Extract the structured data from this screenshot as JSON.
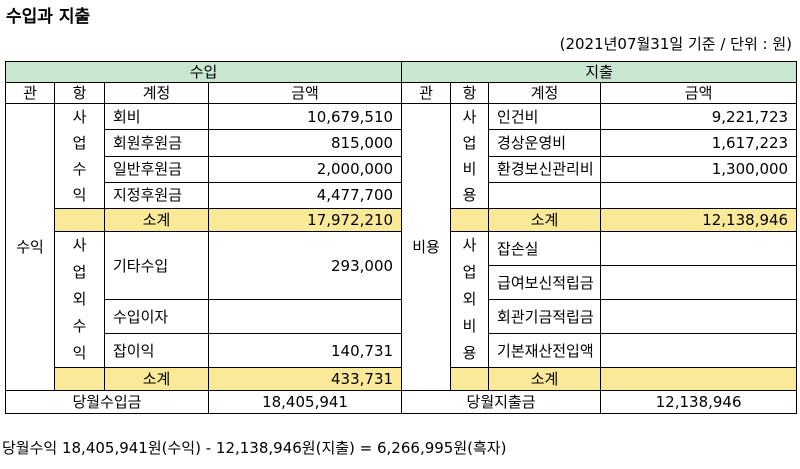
{
  "title": "수입과 지출",
  "basis": "(2021년07월31일 기준 / 단위 : 원)",
  "headers": {
    "income_section": "수입",
    "expense_section": "지출",
    "gwan": "관",
    "hang": "항",
    "account": "계정",
    "amount": "금액"
  },
  "income": {
    "gwan": "수익",
    "business": {
      "hang": [
        "사",
        "업",
        "수",
        "익"
      ],
      "rows": [
        {
          "account": "회비",
          "amount": "10,679,510"
        },
        {
          "account": "회원후원금",
          "amount": "815,000"
        },
        {
          "account": "일반후원금",
          "amount": "2,000,000"
        },
        {
          "account": "지정후원금",
          "amount": "4,477,700"
        }
      ],
      "subtotal_label": "소계",
      "subtotal": "17,972,210"
    },
    "nonbusiness": {
      "hang": [
        "사",
        "업",
        "외",
        "수",
        "익"
      ],
      "rows": [
        {
          "account": "기타수입",
          "amount": "293,000"
        },
        {
          "account": "수입이자",
          "amount": ""
        },
        {
          "account": "잡이익",
          "amount": "140,731"
        }
      ],
      "subtotal_label": "소계",
      "subtotal": "433,731"
    },
    "total_label": "당월수입금",
    "total": "18,405,941"
  },
  "expense": {
    "gwan": "비용",
    "business": {
      "hang": [
        "사",
        "업",
        "비",
        "용"
      ],
      "rows": [
        {
          "account": "인건비",
          "amount": "9,221,723"
        },
        {
          "account": "경상운영비",
          "amount": "1,617,223"
        },
        {
          "account": "환경보신관리비",
          "amount": "1,300,000"
        },
        {
          "account": "",
          "amount": ""
        }
      ],
      "subtotal_label": "소계",
      "subtotal": "12,138,946"
    },
    "nonbusiness": {
      "hang": [
        "사",
        "업",
        "외",
        "비",
        "용"
      ],
      "rows": [
        {
          "account": "잡손실",
          "amount": ""
        },
        {
          "account": "급여보신적립금",
          "amount": ""
        },
        {
          "account": "회관기금적립금",
          "amount": ""
        },
        {
          "account": "기본재산전입액",
          "amount": ""
        }
      ],
      "subtotal_label": "소계",
      "subtotal": ""
    },
    "total_label": "당월지출금",
    "total": "12,138,946"
  },
  "footer": "당월수익 18,405,941원(수익) - 12,138,946원(지출) = 6,266,995원(흑자)",
  "colors": {
    "section_header": "#c8e6d0",
    "subtotal": "#fbe99a"
  }
}
